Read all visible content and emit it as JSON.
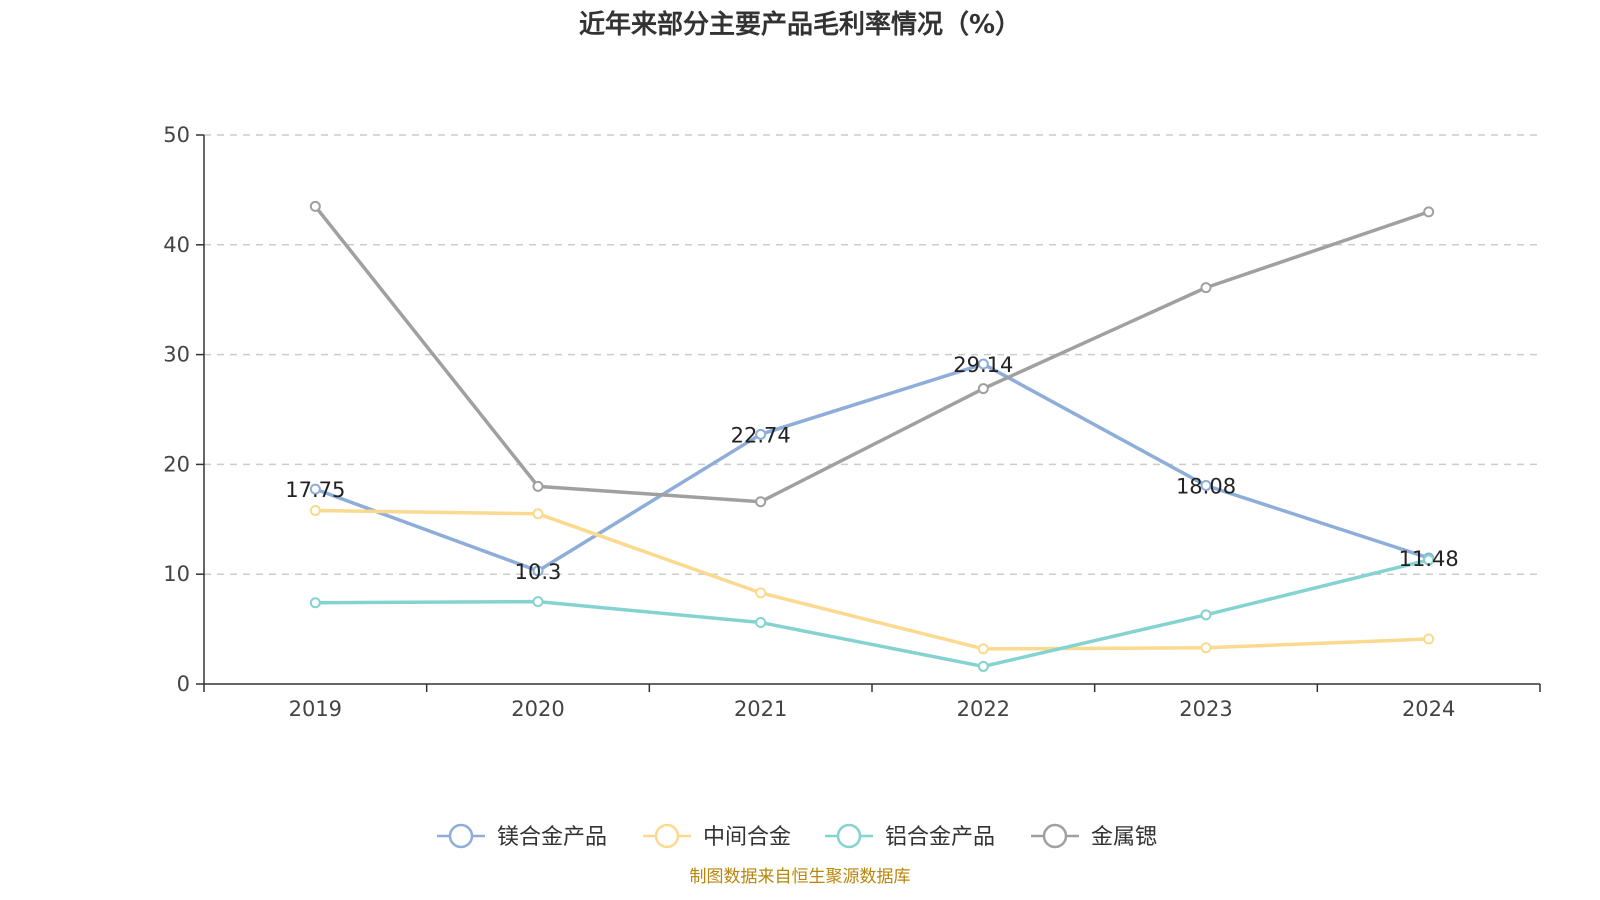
{
  "chart_data": {
    "type": "line",
    "title": "近年来部分主要产品毛利率情况（%）",
    "categories": [
      "2019",
      "2020",
      "2021",
      "2022",
      "2023",
      "2024"
    ],
    "ylim": [
      0,
      50
    ],
    "yticks": [
      0,
      10,
      20,
      30,
      40,
      50
    ],
    "grid": true,
    "legend_position": "bottom",
    "series": [
      {
        "name": "镁合金产品",
        "color": "#8eaed9",
        "values": [
          17.75,
          10.3,
          22.74,
          29.14,
          18.08,
          11.48
        ],
        "data_labels": [
          "17.75",
          "10.3",
          "22.74",
          "29.14",
          "18.08",
          "11.48"
        ]
      },
      {
        "name": "中间合金",
        "color": "#fbd98f",
        "values": [
          15.8,
          15.5,
          8.3,
          3.2,
          3.3,
          4.1
        ]
      },
      {
        "name": "铝合金产品",
        "color": "#84d3d1",
        "values": [
          7.4,
          7.5,
          5.6,
          1.6,
          6.3,
          11.3
        ]
      },
      {
        "name": "金属锶",
        "color": "#a0a0a0",
        "values": [
          43.5,
          18.0,
          16.6,
          26.9,
          36.1,
          43.0
        ]
      }
    ]
  },
  "source_note": "制图数据来自恒生聚源数据库"
}
